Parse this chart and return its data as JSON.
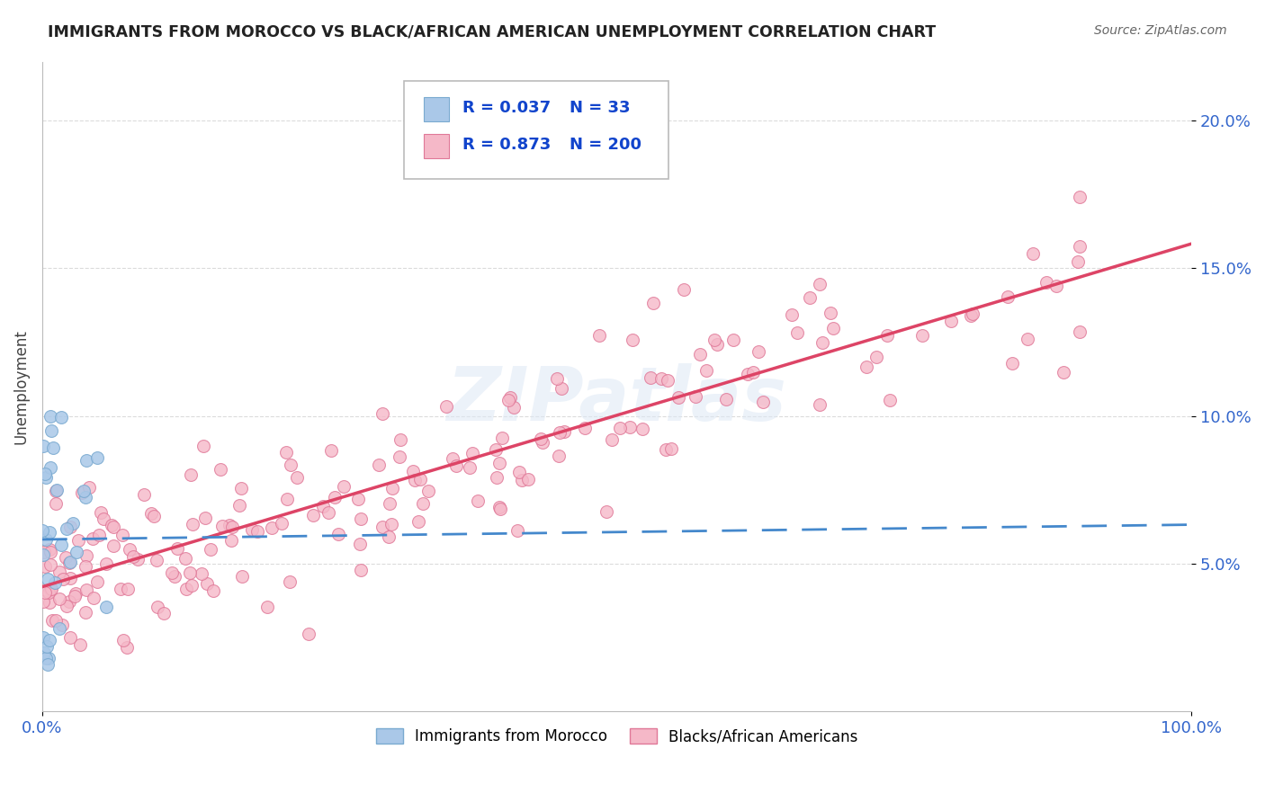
{
  "title": "IMMIGRANTS FROM MOROCCO VS BLACK/AFRICAN AMERICAN UNEMPLOYMENT CORRELATION CHART",
  "source": "Source: ZipAtlas.com",
  "ylabel": "Unemployment",
  "xlim": [
    0.0,
    1.0
  ],
  "ylim": [
    0.0,
    0.22
  ],
  "x_tick_labels": [
    "0.0%",
    "100.0%"
  ],
  "x_ticks": [
    0.0,
    1.0
  ],
  "y_tick_labels": [
    "5.0%",
    "10.0%",
    "15.0%",
    "20.0%"
  ],
  "y_ticks": [
    0.05,
    0.1,
    0.15,
    0.2
  ],
  "watermark": "ZIPatlas",
  "morocco_color": "#aac8e8",
  "morocco_edge": "#7aaad0",
  "black_color": "#f5b8c8",
  "black_edge": "#e07898",
  "regression_morocco_color": "#4488cc",
  "regression_black_color": "#dd4466",
  "background_color": "#ffffff",
  "grid_color": "#cccccc",
  "title_color": "#222222",
  "axis_label_color": "#3366cc",
  "legend_R_color": "#1144cc",
  "R1": "0.037",
  "N1": "33",
  "R2": "0.873",
  "N2": "200",
  "morocco_n": 33,
  "black_n": 200
}
